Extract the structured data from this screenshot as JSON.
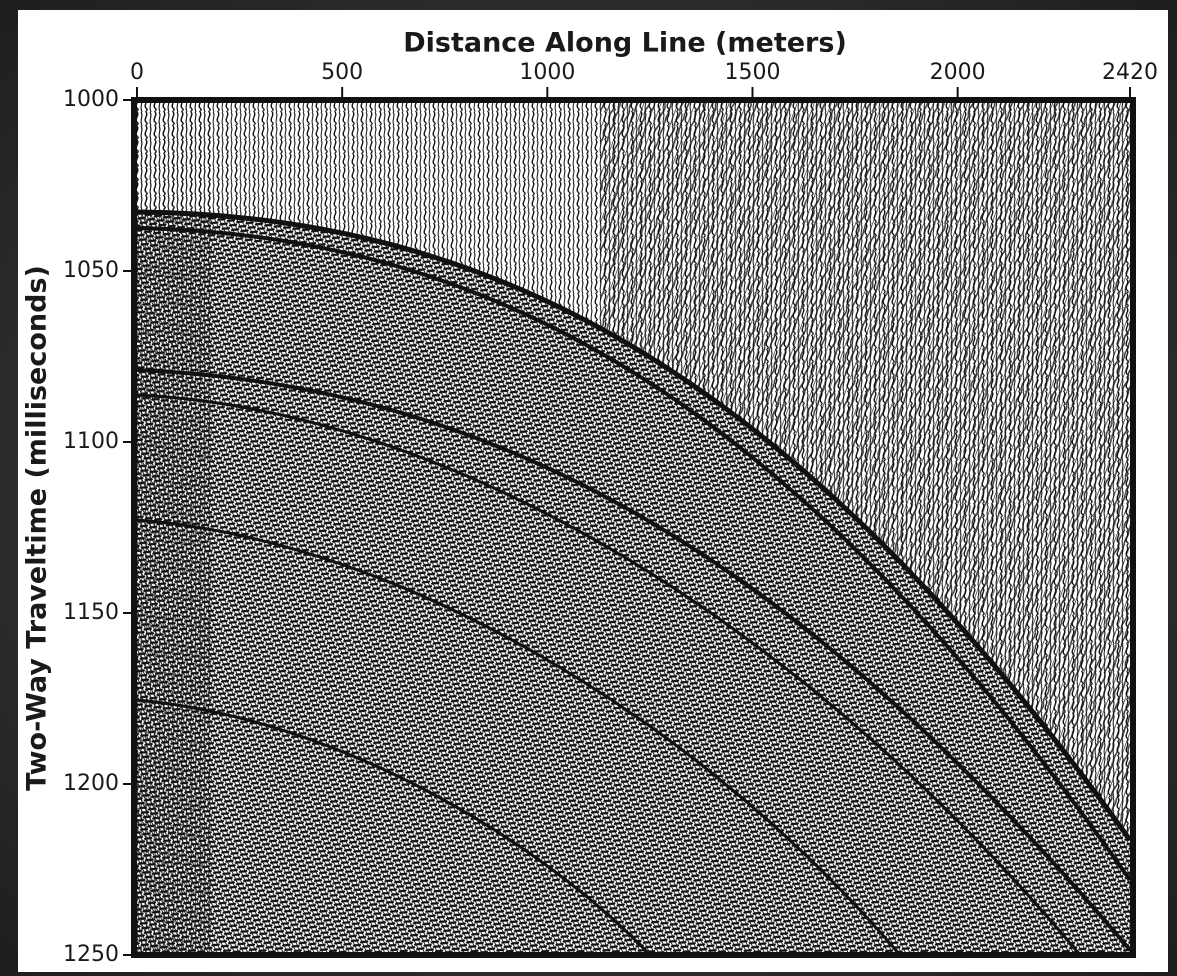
{
  "chart_data": {
    "type": "seismic",
    "xlabel": "Distance Along Line (meters)",
    "ylabel": "Two-Way Traveltime (milliseconds)",
    "xlim": [
      0,
      2420
    ],
    "xticks": [
      0,
      500,
      1000,
      1500,
      2000,
      2420
    ],
    "ylim": [
      1000,
      1250
    ],
    "yticks": [
      1000,
      1050,
      1100,
      1150,
      1200,
      1250
    ],
    "y_inverted": true,
    "x_axis_position": "top"
  }
}
